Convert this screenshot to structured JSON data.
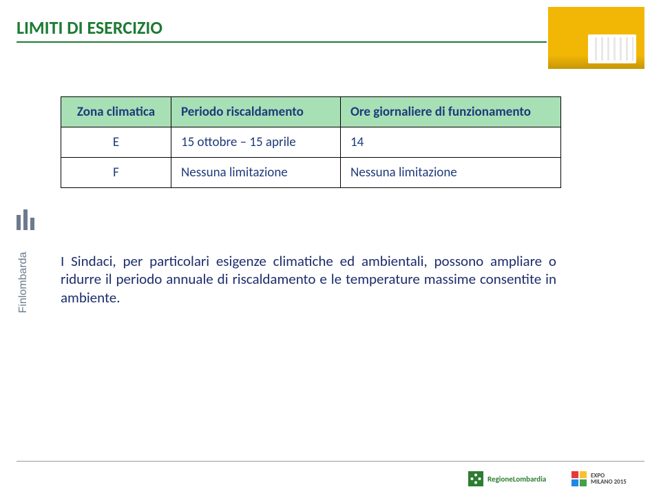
{
  "title": {
    "text": "LIMITI DI ESERCIZIO",
    "color": "#1e7b34",
    "fontsize": 26,
    "underline_color": "#1e7b34",
    "underline_width": 770
  },
  "header_image": {
    "bg_color": "#f2b705",
    "radiator_color": "#ffffff"
  },
  "table": {
    "header_bg": "#a8e0b6",
    "header_text_color": "#1f3a7a",
    "body_text_color": "#1f3a7a",
    "fontsize": 19,
    "columns": [
      {
        "label": "Zona climatica",
        "key": "zone"
      },
      {
        "label": "Periodo riscaldamento",
        "key": "period"
      },
      {
        "label": "Ore giornaliere di funzionamento",
        "key": "hours"
      }
    ],
    "rows": [
      {
        "zone": "E",
        "period": "15 ottobre – 15 aprile",
        "hours": "14"
      },
      {
        "zone": "F",
        "period": "Nessuna limitazione",
        "hours": "Nessuna limitazione"
      }
    ]
  },
  "body": {
    "text": "I Sindaci, per particolari esigenze climatiche ed ambientali, possono ampliare o ridurre il periodo annuale di riscaldamento e le temperature massime consentite in ambiente.",
    "color": "#1c2d6b",
    "fontsize": 21
  },
  "logos": {
    "finlombarda": {
      "text": "Finlombarda",
      "color": "#6b7b8c"
    },
    "regione": {
      "text": "RegioneLombardia",
      "color": "#2e7d32",
      "rose_green": "#2e7d32",
      "rose_white": "#ffffff"
    },
    "expo": {
      "line1": "EXPO",
      "line2": "MILANO 2015",
      "c1": "#e53935",
      "c2": "#fbc02d",
      "c3": "#1e88e5",
      "c4": "#43a047",
      "text_color": "#444444"
    }
  }
}
